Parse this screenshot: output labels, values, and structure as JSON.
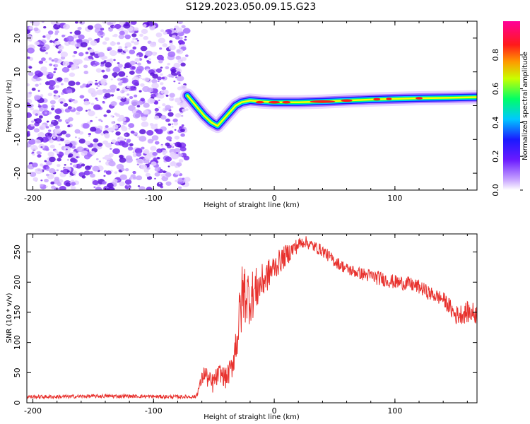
{
  "title": "S129.2023.050.09.15.G23",
  "colors": {
    "snr_line": "#e8322e",
    "noise_dot": "#7a2ff0",
    "axis": "#000000"
  },
  "chart_data": [
    {
      "type": "heatmap",
      "xlabel": "Height of straight line (km)",
      "ylabel": "Frequency (Hz)",
      "xlim": [
        -205,
        168
      ],
      "ylim": [
        -25,
        25
      ],
      "xticks": [
        -200,
        -100,
        0,
        100
      ],
      "yticks": [
        -20,
        -10,
        0,
        10,
        20
      ],
      "colorbar": {
        "label": "Normalized spectral amplitude",
        "range": [
          0,
          1
        ],
        "ticks": [
          0.0,
          0.2,
          0.4,
          0.6,
          0.8
        ],
        "colormap": [
          "#ffffff",
          "#7a2ff0",
          "#1a1aff",
          "#00c8ff",
          "#00ff66",
          "#ffff00",
          "#ff7f00",
          "#ff0033",
          "#ff00ff"
        ]
      },
      "noise_region_x": [
        -205,
        -72
      ],
      "signal_track": {
        "x": [
          -72,
          -65,
          -58,
          -52,
          -47,
          -42,
          -37,
          -32,
          -27,
          -20,
          -10,
          0,
          20,
          40,
          60,
          80,
          100,
          120,
          140,
          168
        ],
        "y": [
          3,
          0,
          -3,
          -5,
          -6,
          -4,
          -2,
          0,
          1,
          1.5,
          1.2,
          1.0,
          1.0,
          1.2,
          1.5,
          1.8,
          2.0,
          2.2,
          2.3,
          2.5
        ]
      }
    },
    {
      "type": "line",
      "xlabel": "Height of straight line (km)",
      "ylabel": "SNR (10 * v/v)",
      "xlim": [
        -205,
        168
      ],
      "ylim": [
        0,
        280
      ],
      "xticks": [
        -200,
        -100,
        0,
        100
      ],
      "yticks": [
        0,
        50,
        100,
        150,
        200,
        250
      ],
      "series": [
        {
          "x": [
            -205,
            -180,
            -150,
            -120,
            -90,
            -65,
            -58,
            -52,
            -45,
            -40,
            -35,
            -30,
            -27,
            -25,
            -20,
            -10,
            0,
            10,
            20,
            25,
            30,
            40,
            50,
            60,
            70,
            80,
            90,
            100,
            110,
            120,
            130,
            140,
            145,
            150,
            160,
            168
          ],
          "y": [
            10,
            10,
            11,
            11,
            10,
            10,
            50,
            30,
            50,
            40,
            60,
            120,
            170,
            185,
            175,
            200,
            225,
            245,
            262,
            268,
            262,
            252,
            235,
            222,
            215,
            210,
            205,
            200,
            198,
            192,
            180,
            172,
            160,
            145,
            150,
            148
          ],
          "noise": [
            3,
            3,
            3,
            3,
            3,
            3,
            15,
            18,
            15,
            18,
            20,
            45,
            60,
            55,
            45,
            30,
            22,
            18,
            12,
            10,
            10,
            10,
            10,
            10,
            10,
            12,
            12,
            12,
            12,
            12,
            12,
            12,
            14,
            16,
            18,
            18
          ]
        }
      ]
    }
  ]
}
